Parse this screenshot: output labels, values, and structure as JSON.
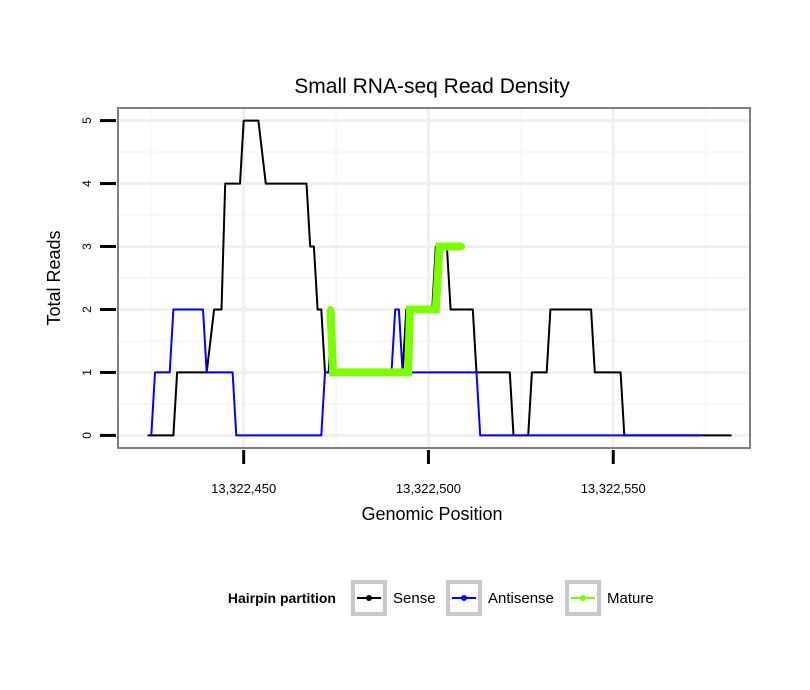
{
  "chart_data": {
    "type": "line",
    "title": "Small RNA-seq Read Density",
    "xlabel": "Genomic Position",
    "ylabel": "Total Reads",
    "xlim": [
      13322416,
      13322587
    ],
    "ylim": [
      -0.2,
      5.2
    ],
    "x_ticks": [
      13322450,
      13322500,
      13322550
    ],
    "x_tick_labels": [
      "13,322,450",
      "13,322,500",
      "13,322,550"
    ],
    "y_ticks": [
      0,
      1,
      2,
      3,
      4,
      5
    ],
    "y_tick_labels": [
      "0",
      "1",
      "2",
      "3",
      "4",
      "5"
    ],
    "grid": true,
    "legend_position": "bottom",
    "legend_title": "Hairpin partition",
    "series": [
      {
        "name": "Sense",
        "color": "#000000",
        "x": [
          13322424,
          13322431,
          13322432,
          13322440,
          13322442,
          13322444,
          13322445,
          13322449,
          13322450,
          13322454,
          13322456,
          13322458,
          13322462,
          13322467,
          13322468,
          13322469,
          13322470,
          13322471,
          13322472,
          13322473,
          13322473.8,
          13322474.5,
          13322475,
          13322493,
          13322494,
          13322497,
          13322498,
          13322501,
          13322502,
          13322505,
          13322506,
          13322512,
          13322513,
          13322522,
          13322523,
          13322527,
          13322528,
          13322532,
          13322533,
          13322544,
          13322545,
          13322552,
          13322553,
          13322561,
          13322562,
          13322574,
          13322575,
          13322582
        ],
        "values": [
          0,
          0,
          1,
          1,
          2,
          2,
          4,
          4,
          5,
          5,
          4,
          4,
          4,
          4,
          3,
          3,
          2,
          2,
          1,
          1,
          2,
          1,
          1,
          1,
          2,
          2,
          2,
          2,
          3,
          3,
          2,
          2,
          1,
          1,
          0,
          0,
          1,
          1,
          2,
          2,
          1,
          1,
          0,
          0,
          0,
          0,
          0,
          0
        ]
      },
      {
        "name": "Antisense",
        "color": "#0000ff",
        "x": [
          13322425,
          13322426,
          13322430,
          13322431,
          13322439,
          13322440,
          13322447,
          13322448,
          13322454,
          13322455,
          13322471,
          13322472,
          13322490,
          13322491,
          13322492,
          13322493,
          13322513,
          13322514,
          13322574
        ],
        "values": [
          0,
          1,
          1,
          2,
          2,
          1,
          1,
          0,
          0,
          0,
          0,
          1,
          1,
          2,
          2,
          1,
          1,
          0,
          0
        ]
      },
      {
        "name": "Mature",
        "color": "#7cfc00",
        "x": [
          13322473.5,
          13322474.2,
          13322475,
          13322480,
          13322485,
          13322490,
          13322494.5,
          13322495,
          13322498,
          13322502,
          13322503,
          13322505,
          13322507,
          13322509
        ],
        "values": [
          2,
          1,
          1,
          1,
          1,
          1,
          1,
          2,
          2,
          2,
          3,
          3,
          3,
          3
        ]
      }
    ]
  }
}
